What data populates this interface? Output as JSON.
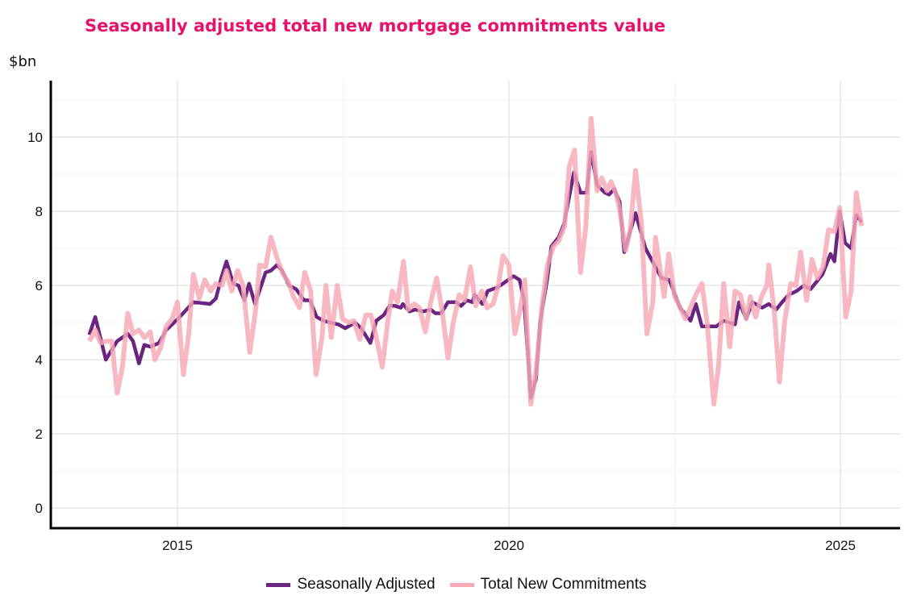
{
  "chart_data": {
    "type": "line",
    "title": "Seasonally adjusted total new mortgage commitments value",
    "ylabel": "$bn",
    "xlabel": "",
    "xlim": [
      2013.09,
      2025.9
    ],
    "ylim": [
      -0.54,
      11.52
    ],
    "x_ticks": [
      2015,
      2020,
      2025
    ],
    "x_tick_labels": [
      "2015",
      "2020",
      "2025"
    ],
    "y_ticks": [
      0,
      2,
      4,
      6,
      8,
      10
    ],
    "y_tick_labels": [
      "0",
      "2",
      "4",
      "6",
      "8",
      "10"
    ],
    "grid": true,
    "legend_position": "bottom",
    "colors": {
      "title": "#e8116b",
      "Seasonally Adjusted": "#6a2580",
      "Total New Commitments": "#f7a8b5"
    },
    "series": [
      {
        "name": "Total New Commitments",
        "points": [
          [
            2013.67,
            4.5
          ],
          [
            2013.76,
            4.8
          ],
          [
            2013.84,
            4.45
          ],
          [
            2013.93,
            4.5
          ],
          [
            2014.01,
            4.5
          ],
          [
            2014.09,
            3.1
          ],
          [
            2014.17,
            3.8
          ],
          [
            2014.25,
            5.25
          ],
          [
            2014.33,
            4.7
          ],
          [
            2014.42,
            4.8
          ],
          [
            2014.5,
            4.6
          ],
          [
            2014.59,
            4.75
          ],
          [
            2014.66,
            4.0
          ],
          [
            2014.74,
            4.3
          ],
          [
            2014.83,
            4.9
          ],
          [
            2014.92,
            5.1
          ],
          [
            2015.0,
            5.55
          ],
          [
            2015.09,
            3.6
          ],
          [
            2015.17,
            4.7
          ],
          [
            2015.24,
            6.3
          ],
          [
            2015.33,
            5.65
          ],
          [
            2015.41,
            6.15
          ],
          [
            2015.5,
            5.85
          ],
          [
            2015.58,
            6.05
          ],
          [
            2015.67,
            6.0
          ],
          [
            2015.74,
            6.4
          ],
          [
            2015.82,
            5.85
          ],
          [
            2015.91,
            6.4
          ],
          [
            2015.99,
            6.0
          ],
          [
            2016.09,
            4.2
          ],
          [
            2016.18,
            5.35
          ],
          [
            2016.24,
            6.55
          ],
          [
            2016.33,
            6.5
          ],
          [
            2016.41,
            7.3
          ],
          [
            2016.5,
            6.75
          ],
          [
            2016.58,
            6.35
          ],
          [
            2016.67,
            6.1
          ],
          [
            2016.75,
            5.7
          ],
          [
            2016.84,
            5.4
          ],
          [
            2016.92,
            6.35
          ],
          [
            2017.01,
            5.85
          ],
          [
            2017.09,
            3.6
          ],
          [
            2017.18,
            4.6
          ],
          [
            2017.24,
            6.0
          ],
          [
            2017.32,
            4.6
          ],
          [
            2017.41,
            6.0
          ],
          [
            2017.49,
            5.1
          ],
          [
            2017.58,
            5.0
          ],
          [
            2017.66,
            5.05
          ],
          [
            2017.75,
            4.55
          ],
          [
            2017.84,
            5.2
          ],
          [
            2017.92,
            5.2
          ],
          [
            2018.0,
            4.6
          ],
          [
            2018.09,
            3.8
          ],
          [
            2018.17,
            5.0
          ],
          [
            2018.24,
            5.85
          ],
          [
            2018.32,
            5.55
          ],
          [
            2018.41,
            6.65
          ],
          [
            2018.48,
            5.35
          ],
          [
            2018.57,
            5.5
          ],
          [
            2018.65,
            5.4
          ],
          [
            2018.74,
            4.75
          ],
          [
            2018.82,
            5.55
          ],
          [
            2018.91,
            6.2
          ],
          [
            2018.99,
            5.35
          ],
          [
            2019.08,
            4.05
          ],
          [
            2019.16,
            5.0
          ],
          [
            2019.25,
            5.75
          ],
          [
            2019.33,
            5.6
          ],
          [
            2019.42,
            6.5
          ],
          [
            2019.5,
            5.45
          ],
          [
            2019.59,
            5.85
          ],
          [
            2019.67,
            5.4
          ],
          [
            2019.76,
            5.5
          ],
          [
            2019.84,
            6.0
          ],
          [
            2019.91,
            6.8
          ],
          [
            2020.0,
            6.55
          ],
          [
            2020.09,
            4.7
          ],
          [
            2020.17,
            5.35
          ],
          [
            2020.24,
            6.15
          ],
          [
            2020.33,
            2.8
          ],
          [
            2020.41,
            3.7
          ],
          [
            2020.5,
            5.45
          ],
          [
            2020.58,
            6.55
          ],
          [
            2020.67,
            7.05
          ],
          [
            2020.75,
            7.2
          ],
          [
            2020.84,
            7.6
          ],
          [
            2020.91,
            9.2
          ],
          [
            2020.99,
            9.65
          ],
          [
            2021.08,
            6.35
          ],
          [
            2021.16,
            7.6
          ],
          [
            2021.24,
            10.5
          ],
          [
            2021.33,
            8.55
          ],
          [
            2021.4,
            8.9
          ],
          [
            2021.48,
            8.55
          ],
          [
            2021.54,
            8.8
          ],
          [
            2021.61,
            8.5
          ],
          [
            2021.67,
            8.05
          ],
          [
            2021.76,
            6.95
          ],
          [
            2021.83,
            7.5
          ],
          [
            2021.91,
            9.1
          ],
          [
            2022.0,
            7.65
          ],
          [
            2022.08,
            4.7
          ],
          [
            2022.17,
            5.55
          ],
          [
            2022.21,
            7.3
          ],
          [
            2022.34,
            5.7
          ],
          [
            2022.41,
            6.85
          ],
          [
            2022.5,
            5.7
          ],
          [
            2022.57,
            5.45
          ],
          [
            2022.66,
            5.1
          ],
          [
            2022.74,
            5.4
          ],
          [
            2022.82,
            5.75
          ],
          [
            2022.91,
            6.05
          ],
          [
            2022.99,
            5.0
          ],
          [
            2023.09,
            2.8
          ],
          [
            2023.16,
            3.8
          ],
          [
            2023.24,
            6.05
          ],
          [
            2023.33,
            4.35
          ],
          [
            2023.41,
            5.85
          ],
          [
            2023.49,
            5.75
          ],
          [
            2023.58,
            5.1
          ],
          [
            2023.64,
            5.7
          ],
          [
            2023.72,
            5.15
          ],
          [
            2023.81,
            5.7
          ],
          [
            2023.89,
            6.0
          ],
          [
            2023.92,
            6.55
          ],
          [
            2024.0,
            5.35
          ],
          [
            2024.08,
            3.4
          ],
          [
            2024.16,
            5.05
          ],
          [
            2024.25,
            6.05
          ],
          [
            2024.33,
            6.0
          ],
          [
            2024.4,
            6.9
          ],
          [
            2024.49,
            5.6
          ],
          [
            2024.57,
            6.7
          ],
          [
            2024.65,
            6.2
          ],
          [
            2024.74,
            6.5
          ],
          [
            2024.82,
            7.5
          ],
          [
            2024.91,
            7.45
          ],
          [
            2024.99,
            8.1
          ],
          [
            2025.08,
            5.15
          ],
          [
            2025.16,
            5.85
          ],
          [
            2025.24,
            8.5
          ],
          [
            2025.32,
            7.6
          ]
        ]
      },
      {
        "name": "Seasonally Adjusted",
        "points": [
          [
            2013.67,
            4.67
          ],
          [
            2013.76,
            5.15
          ],
          [
            2013.92,
            4.0
          ],
          [
            2014.09,
            4.5
          ],
          [
            2014.25,
            4.7
          ],
          [
            2014.33,
            4.5
          ],
          [
            2014.42,
            3.9
          ],
          [
            2014.5,
            4.4
          ],
          [
            2014.59,
            4.35
          ],
          [
            2014.72,
            4.45
          ],
          [
            2014.83,
            4.8
          ],
          [
            2014.92,
            4.95
          ],
          [
            2015.06,
            5.2
          ],
          [
            2015.24,
            5.55
          ],
          [
            2015.49,
            5.5
          ],
          [
            2015.58,
            5.65
          ],
          [
            2015.66,
            6.2
          ],
          [
            2015.74,
            6.65
          ],
          [
            2015.84,
            6.05
          ],
          [
            2015.92,
            6.0
          ],
          [
            2016.01,
            5.6
          ],
          [
            2016.08,
            6.05
          ],
          [
            2016.17,
            5.5
          ],
          [
            2016.33,
            6.35
          ],
          [
            2016.41,
            6.4
          ],
          [
            2016.5,
            6.55
          ],
          [
            2016.58,
            6.4
          ],
          [
            2016.68,
            6.0
          ],
          [
            2016.79,
            5.9
          ],
          [
            2016.91,
            5.6
          ],
          [
            2017.0,
            5.6
          ],
          [
            2017.1,
            5.15
          ],
          [
            2017.2,
            5.05
          ],
          [
            2017.43,
            4.95
          ],
          [
            2017.53,
            4.85
          ],
          [
            2017.68,
            5.0
          ],
          [
            2017.77,
            4.85
          ],
          [
            2017.91,
            4.45
          ],
          [
            2018.0,
            5.05
          ],
          [
            2018.11,
            5.2
          ],
          [
            2018.2,
            5.45
          ],
          [
            2018.28,
            5.45
          ],
          [
            2018.37,
            5.4
          ],
          [
            2018.4,
            5.5
          ],
          [
            2018.5,
            5.3
          ],
          [
            2018.59,
            5.35
          ],
          [
            2018.71,
            5.3
          ],
          [
            2018.82,
            5.35
          ],
          [
            2018.89,
            5.25
          ],
          [
            2018.98,
            5.25
          ],
          [
            2019.08,
            5.55
          ],
          [
            2019.2,
            5.55
          ],
          [
            2019.28,
            5.45
          ],
          [
            2019.36,
            5.6
          ],
          [
            2019.45,
            5.55
          ],
          [
            2019.48,
            5.75
          ],
          [
            2019.6,
            5.5
          ],
          [
            2019.68,
            5.85
          ],
          [
            2019.83,
            5.95
          ],
          [
            2019.95,
            6.1
          ],
          [
            2020.07,
            6.25
          ],
          [
            2020.16,
            6.15
          ],
          [
            2020.23,
            5.6
          ],
          [
            2020.33,
            2.97
          ],
          [
            2020.41,
            3.5
          ],
          [
            2020.47,
            5.0
          ],
          [
            2020.58,
            6.2
          ],
          [
            2020.64,
            7.05
          ],
          [
            2020.75,
            7.3
          ],
          [
            2020.83,
            7.65
          ],
          [
            2020.98,
            9.05
          ],
          [
            2021.08,
            8.5
          ],
          [
            2021.17,
            8.5
          ],
          [
            2021.24,
            9.6
          ],
          [
            2021.33,
            8.7
          ],
          [
            2021.45,
            8.5
          ],
          [
            2021.51,
            8.45
          ],
          [
            2021.59,
            8.6
          ],
          [
            2021.67,
            8.25
          ],
          [
            2021.74,
            6.9
          ],
          [
            2021.91,
            7.95
          ],
          [
            2022.06,
            7.0
          ],
          [
            2022.18,
            6.6
          ],
          [
            2022.3,
            6.2
          ],
          [
            2022.42,
            6.15
          ],
          [
            2022.58,
            5.4
          ],
          [
            2022.74,
            5.05
          ],
          [
            2022.82,
            5.5
          ],
          [
            2022.91,
            4.9
          ],
          [
            2023.13,
            4.9
          ],
          [
            2023.24,
            5.05
          ],
          [
            2023.41,
            4.95
          ],
          [
            2023.47,
            5.55
          ],
          [
            2023.58,
            5.1
          ],
          [
            2023.67,
            5.55
          ],
          [
            2023.82,
            5.4
          ],
          [
            2023.92,
            5.5
          ],
          [
            2024.03,
            5.35
          ],
          [
            2024.12,
            5.55
          ],
          [
            2024.22,
            5.75
          ],
          [
            2024.34,
            5.85
          ],
          [
            2024.45,
            6.0
          ],
          [
            2024.55,
            5.9
          ],
          [
            2024.73,
            6.3
          ],
          [
            2024.85,
            6.85
          ],
          [
            2024.91,
            6.65
          ],
          [
            2024.99,
            8.0
          ],
          [
            2025.07,
            7.15
          ],
          [
            2025.16,
            7.0
          ],
          [
            2025.24,
            7.9
          ],
          [
            2025.32,
            7.7
          ]
        ]
      }
    ]
  },
  "legend": {
    "items": [
      "Seasonally Adjusted",
      "Total New Commitments"
    ]
  }
}
